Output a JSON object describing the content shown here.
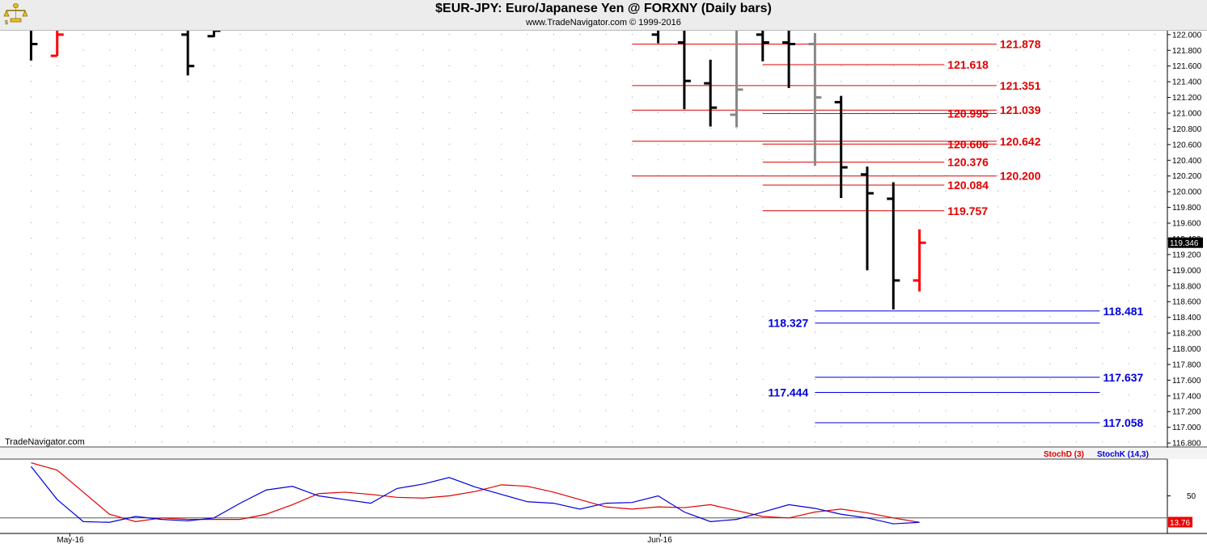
{
  "header": {
    "title": "$EUR-JPY:  Euro/Japanese Yen @ FORXNY  (Daily bars)",
    "copyright": "www.TradeNavigator.com © 1999-2016",
    "watermark": "TradeNavigator.com"
  },
  "colors": {
    "up_bar": "#000000",
    "down_bar": "#ff0000",
    "neutral_bar": "#888888",
    "resistance": "#e00000",
    "support": "#0000dd",
    "stoch_d": "#e00000",
    "stoch_k": "#0000dd"
  },
  "chart_data": [
    {
      "type": "bar",
      "subtype": "ohlc",
      "title": "$EUR-JPY:  Euro/Japanese Yen @ FORXNY  (Daily bars)",
      "ylim": [
        116.76,
        122.06
      ],
      "y_ticks": [
        "122.000",
        "121.800",
        "121.600",
        "121.400",
        "121.200",
        "121.000",
        "120.800",
        "120.600",
        "120.400",
        "120.200",
        "120.000",
        "119.800",
        "119.600",
        "119.400",
        "119.200",
        "119.000",
        "118.800",
        "118.600",
        "118.400",
        "118.200",
        "118.000",
        "117.800",
        "117.600",
        "117.400",
        "117.200",
        "117.000",
        "116.800"
      ],
      "x_labels": [
        {
          "label": "May-16",
          "bar": 1.8
        },
        {
          "label": "Jun-16",
          "bar": 24.4
        }
      ],
      "last_price": "119.346",
      "bars": [
        {
          "i": 1,
          "h": 122.2,
          "l": 121.67,
          "o": 122.1,
          "c": 121.88,
          "color": "up"
        },
        {
          "i": 2,
          "h": 122.15,
          "l": 121.73,
          "o": 121.73,
          "c": 122.0,
          "color": "down"
        },
        {
          "i": 7,
          "h": 122.1,
          "l": 121.48,
          "o": 122.0,
          "c": 121.6,
          "color": "up"
        },
        {
          "i": 8,
          "h": 122.3,
          "l": 121.97,
          "o": 121.98,
          "c": 122.05,
          "color": "up"
        },
        {
          "i": 25,
          "h": 122.2,
          "l": 121.89,
          "o": 122.0,
          "c": 122.1,
          "color": "up"
        },
        {
          "i": 26,
          "h": 122.4,
          "l": 121.05,
          "o": 121.9,
          "c": 121.41,
          "color": "up"
        },
        {
          "i": 27,
          "h": 121.68,
          "l": 120.83,
          "o": 121.38,
          "c": 121.07,
          "color": "up"
        },
        {
          "i": 28,
          "h": 122.1,
          "l": 120.82,
          "o": 120.98,
          "c": 121.3,
          "color": "neutral"
        },
        {
          "i": 29,
          "h": 122.2,
          "l": 121.66,
          "o": 122.0,
          "c": 121.9,
          "color": "up"
        },
        {
          "i": 30,
          "h": 122.15,
          "l": 121.32,
          "o": 121.9,
          "c": 121.88,
          "color": "up"
        },
        {
          "i": 31,
          "h": 122.02,
          "l": 120.33,
          "o": 121.88,
          "c": 121.2,
          "color": "neutral"
        },
        {
          "i": 32,
          "h": 121.22,
          "l": 119.92,
          "o": 121.14,
          "c": 120.31,
          "color": "up"
        },
        {
          "i": 33,
          "h": 120.32,
          "l": 119.0,
          "o": 120.22,
          "c": 119.98,
          "color": "up"
        },
        {
          "i": 34,
          "h": 120.12,
          "l": 118.5,
          "o": 119.91,
          "c": 118.87,
          "color": "up"
        },
        {
          "i": 35,
          "h": 119.52,
          "l": 118.73,
          "o": 118.87,
          "c": 119.35,
          "color": "down"
        }
      ],
      "levels": [
        {
          "value": "121.878",
          "color": "resistance",
          "x_from": 24,
          "x_to": 37.95,
          "label_side": "right",
          "label_x": 37.95
        },
        {
          "value": "121.618",
          "color": "resistance",
          "x_from": 29,
          "x_to": 35.95,
          "label_side": "right",
          "label_x": 35.95
        },
        {
          "value": "121.351",
          "color": "resistance",
          "x_from": 24,
          "x_to": 37.95,
          "label_side": "right",
          "label_x": 37.95
        },
        {
          "value": "121.039",
          "color": "resistance",
          "x_from": 24,
          "x_to": 37.95,
          "label_side": "right",
          "label_x": 37.95
        },
        {
          "value": "120.995",
          "color": "resistance",
          "x_from": 29,
          "x_to": 37.95,
          "label_side": "right",
          "label_x": 35.95
        },
        {
          "value": "120.642",
          "color": "resistance",
          "x_from": 24,
          "x_to": 37.95,
          "label_side": "right",
          "label_x": 37.95
        },
        {
          "value": "120.606",
          "color": "resistance",
          "x_from": 29,
          "x_to": 37.95,
          "label_side": "right",
          "label_x": 35.95
        },
        {
          "value": "120.376",
          "color": "resistance",
          "x_from": 29,
          "x_to": 35.95,
          "label_side": "right",
          "label_x": 35.95
        },
        {
          "value": "120.200",
          "color": "resistance",
          "x_from": 24,
          "x_to": 37.95,
          "label_side": "right",
          "label_x": 37.95
        },
        {
          "value": "120.084",
          "color": "resistance",
          "x_from": 29,
          "x_to": 35.95,
          "label_side": "right",
          "label_x": 35.95
        },
        {
          "value": "119.757",
          "color": "resistance",
          "x_from": 29,
          "x_to": 35.95,
          "label_side": "right",
          "label_x": 35.95
        },
        {
          "value": "118.481",
          "color": "support",
          "x_from": 31,
          "x_to": 41.9,
          "label_side": "right",
          "label_x": 41.9
        },
        {
          "value": "118.327",
          "color": "support",
          "x_from": 31,
          "x_to": 41.9,
          "label_side": "left",
          "label_x": 31
        },
        {
          "value": "117.637",
          "color": "support",
          "x_from": 31,
          "x_to": 41.9,
          "label_side": "right",
          "label_x": 41.9
        },
        {
          "value": "117.444",
          "color": "support",
          "x_from": 31,
          "x_to": 41.9,
          "label_side": "left",
          "label_x": 31
        },
        {
          "value": "117.058",
          "color": "support",
          "x_from": 31,
          "x_to": 41.9,
          "label_side": "right",
          "label_x": 41.9
        }
      ]
    },
    {
      "type": "line",
      "ylim": [
        0,
        100
      ],
      "y_ticks": [
        {
          "value": 50,
          "label": "50"
        }
      ],
      "reference_line": 20,
      "last_value": "13.76",
      "x": [
        1,
        2,
        3,
        4,
        5,
        6,
        7,
        8,
        9,
        10,
        11,
        12,
        13,
        14,
        15,
        16,
        17,
        18,
        19,
        20,
        21,
        22,
        23,
        24,
        25,
        26,
        27,
        28,
        29,
        30,
        31,
        32,
        33,
        34,
        35
      ],
      "series": [
        {
          "name": "StochD (3)",
          "color": "stoch_d",
          "values": [
            95,
            85,
            55,
            25,
            15,
            20,
            18,
            18,
            18,
            25,
            38,
            53,
            55,
            52,
            48,
            47,
            50,
            56,
            65,
            63,
            55,
            45,
            35,
            32,
            35,
            34,
            38,
            30,
            22,
            20,
            28,
            32,
            27,
            20,
            14
          ]
        },
        {
          "name": "StochK (14,3)",
          "color": "stoch_k",
          "values": [
            90,
            45,
            15,
            14,
            22,
            18,
            16,
            20,
            40,
            58,
            63,
            50,
            45,
            40,
            60,
            66,
            75,
            62,
            52,
            42,
            40,
            32,
            40,
            41,
            50,
            28,
            15,
            18,
            28,
            38,
            33,
            25,
            20,
            12,
            14
          ]
        }
      ]
    }
  ]
}
